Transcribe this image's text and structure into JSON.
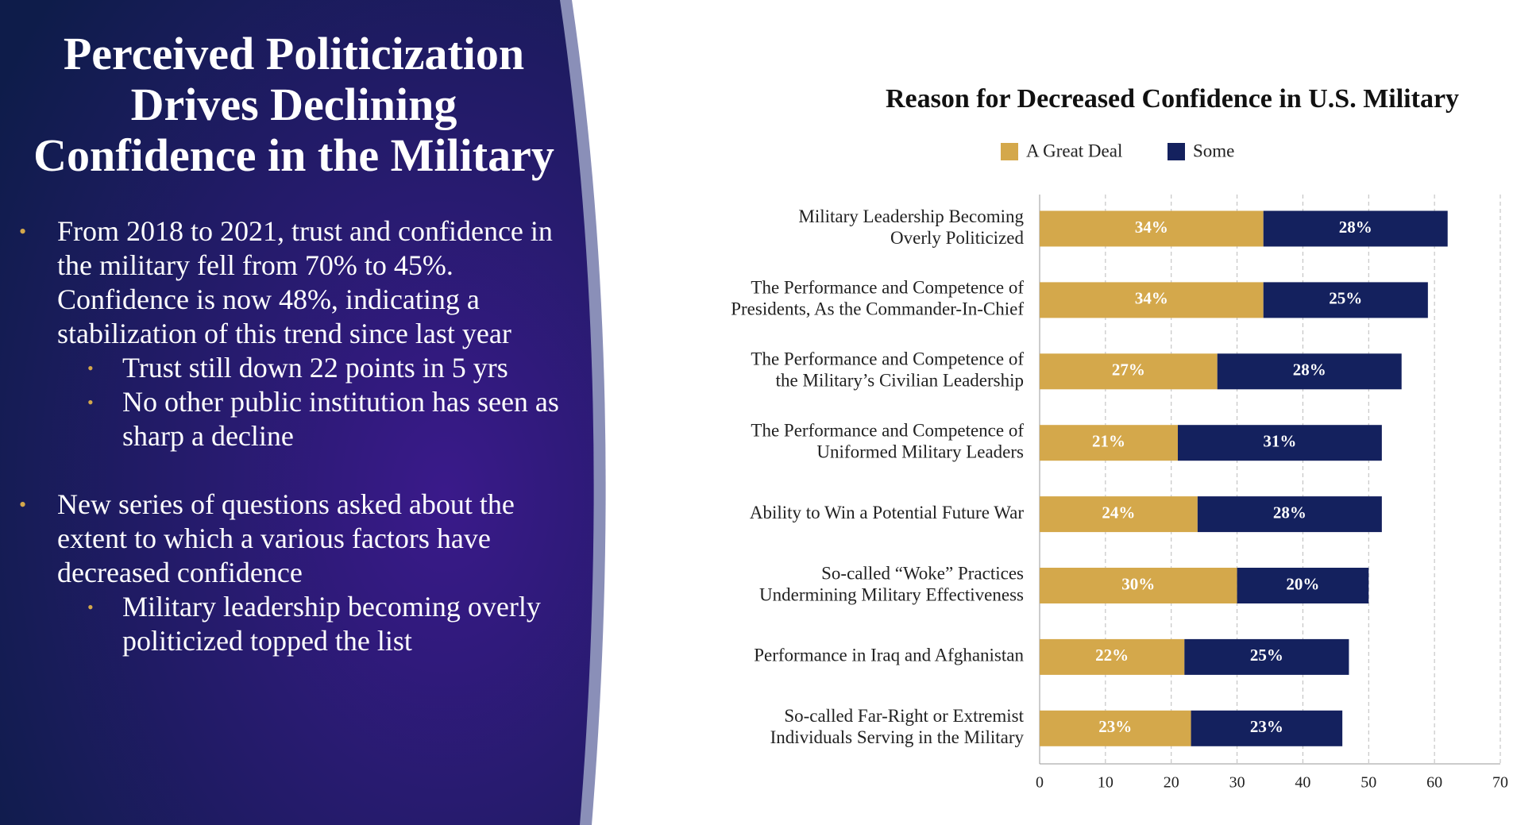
{
  "slide": {
    "title": [
      "Perceived Politicization",
      "Drives Declining",
      "Confidence in the Military"
    ],
    "bullets": [
      {
        "text": "From 2018 to 2021, trust and confidence in the military fell from 70% to 45%. Confidence is now 48%, indicating a stabilization of this trend since last year",
        "sub": [
          "Trust still down 22 points in 5 yrs",
          "No other public institution has seen as sharp a decline"
        ]
      },
      {
        "text": "New series of questions asked about the extent to which a various factors have decreased confidence",
        "sub": [
          "Military leadership becoming overly politicized topped the list"
        ]
      }
    ]
  },
  "chart_data": {
    "type": "bar",
    "orientation": "horizontal",
    "stacked": true,
    "title": "Reason for Decreased Confidence in U.S. Military",
    "categories": [
      [
        "Military Leadership Becoming",
        "Overly Politicized"
      ],
      [
        "The Performance and Competence of",
        "Presidents, As the Commander-In-Chief"
      ],
      [
        "The Performance and Competence of",
        "the Military’s Civilian Leadership"
      ],
      [
        "The Performance and Competence of",
        "Uniformed Military Leaders"
      ],
      [
        "Ability to Win a Potential Future War"
      ],
      [
        "So-called “Woke” Practices",
        "Undermining Military Effectiveness"
      ],
      [
        "Performance in Iraq and Afghanistan"
      ],
      [
        "So-called Far-Right or Extremist",
        "Individuals Serving in the Military"
      ]
    ],
    "series": [
      {
        "name": "A Great Deal",
        "color": "#d4a84b",
        "values": [
          34,
          34,
          27,
          21,
          24,
          30,
          22,
          23
        ],
        "value_labels": [
          "34%",
          "34%",
          "27%",
          "21%",
          "24%",
          "30%",
          "22%",
          "23%"
        ]
      },
      {
        "name": "Some",
        "color": "#14215e",
        "values": [
          28,
          25,
          28,
          31,
          28,
          20,
          25,
          23
        ],
        "value_labels": [
          "28%",
          "25%",
          "28%",
          "31%",
          "28%",
          "20%",
          "25%",
          "23%"
        ]
      }
    ],
    "xlim": [
      0,
      70
    ],
    "xticks": [
      0,
      10,
      20,
      30,
      40,
      50,
      60,
      70
    ],
    "grid": true,
    "legend": "top"
  }
}
